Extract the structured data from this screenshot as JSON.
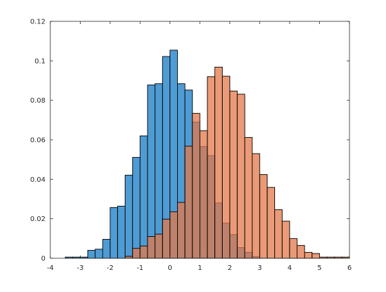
{
  "chart_data": {
    "type": "bar",
    "subtype": "overlaid-histogram",
    "title": "",
    "xlabel": "",
    "ylabel": "",
    "xlim": [
      -4,
      6
    ],
    "ylim": [
      0,
      0.12
    ],
    "xticks": [
      -4,
      -3,
      -2,
      -1,
      0,
      1,
      2,
      3,
      4,
      5,
      6
    ],
    "yticks": [
      0,
      0.02,
      0.04,
      0.06,
      0.08,
      0.1,
      0.12
    ],
    "xtick_labels": [
      "-4",
      "-3",
      "-2",
      "-1",
      "0",
      "1",
      "2",
      "3",
      "4",
      "5",
      "6"
    ],
    "ytick_labels": [
      "0",
      "0.02",
      "0.04",
      "0.06",
      "0.08",
      "0.1",
      "0.12"
    ],
    "grid": false,
    "legend": "none",
    "bin_width": 0.25,
    "series": [
      {
        "color": "#4f9bd4",
        "alpha": 1.0,
        "bins": [
          {
            "x0": -3.5,
            "value": 0.0006
          },
          {
            "x0": -3.25,
            "value": 0.0006
          },
          {
            "x0": -3.0,
            "value": 0.0006
          },
          {
            "x0": -2.75,
            "value": 0.004
          },
          {
            "x0": -2.5,
            "value": 0.0046
          },
          {
            "x0": -2.25,
            "value": 0.0096
          },
          {
            "x0": -2.0,
            "value": 0.0257
          },
          {
            "x0": -1.75,
            "value": 0.0264
          },
          {
            "x0": -1.5,
            "value": 0.0421
          },
          {
            "x0": -1.25,
            "value": 0.0511
          },
          {
            "x0": -1.0,
            "value": 0.062
          },
          {
            "x0": -0.75,
            "value": 0.0878
          },
          {
            "x0": -0.5,
            "value": 0.0884
          },
          {
            "x0": -0.25,
            "value": 0.1022
          },
          {
            "x0": 0.0,
            "value": 0.1054
          },
          {
            "x0": 0.25,
            "value": 0.0884
          },
          {
            "x0": 0.5,
            "value": 0.0852
          },
          {
            "x0": 0.75,
            "value": 0.069
          },
          {
            "x0": 1.0,
            "value": 0.0566
          },
          {
            "x0": 1.25,
            "value": 0.052
          },
          {
            "x0": 1.5,
            "value": 0.028
          },
          {
            "x0": 1.75,
            "value": 0.0178
          },
          {
            "x0": 2.0,
            "value": 0.012
          },
          {
            "x0": 2.25,
            "value": 0.0054
          },
          {
            "x0": 2.5,
            "value": 0.003
          },
          {
            "x0": 2.75,
            "value": 0.0008
          }
        ]
      },
      {
        "color": "#e3784a",
        "alpha": 0.75,
        "bins": [
          {
            "x0": -1.5,
            "value": 0.001
          },
          {
            "x0": -1.25,
            "value": 0.005
          },
          {
            "x0": -1.0,
            "value": 0.0062
          },
          {
            "x0": -0.75,
            "value": 0.011
          },
          {
            "x0": -0.5,
            "value": 0.0122
          },
          {
            "x0": -0.25,
            "value": 0.0198
          },
          {
            "x0": 0.0,
            "value": 0.0235
          },
          {
            "x0": 0.25,
            "value": 0.0283
          },
          {
            "x0": 0.5,
            "value": 0.0568
          },
          {
            "x0": 0.75,
            "value": 0.0734
          },
          {
            "x0": 1.0,
            "value": 0.0646
          },
          {
            "x0": 1.25,
            "value": 0.092
          },
          {
            "x0": 1.5,
            "value": 0.0968
          },
          {
            "x0": 1.75,
            "value": 0.0922
          },
          {
            "x0": 2.0,
            "value": 0.0847
          },
          {
            "x0": 2.25,
            "value": 0.0831
          },
          {
            "x0": 2.5,
            "value": 0.0612
          },
          {
            "x0": 2.75,
            "value": 0.053
          },
          {
            "x0": 3.0,
            "value": 0.0424
          },
          {
            "x0": 3.25,
            "value": 0.0359
          },
          {
            "x0": 3.5,
            "value": 0.0246
          },
          {
            "x0": 3.75,
            "value": 0.0188
          },
          {
            "x0": 4.0,
            "value": 0.01
          },
          {
            "x0": 4.25,
            "value": 0.0065
          },
          {
            "x0": 4.5,
            "value": 0.003
          },
          {
            "x0": 4.75,
            "value": 0.0024
          },
          {
            "x0": 5.0,
            "value": 0.0006
          },
          {
            "x0": 5.25,
            "value": 0.0006
          },
          {
            "x0": 5.5,
            "value": 0.0006
          },
          {
            "x0": 5.75,
            "value": 0.0006
          }
        ]
      }
    ]
  }
}
